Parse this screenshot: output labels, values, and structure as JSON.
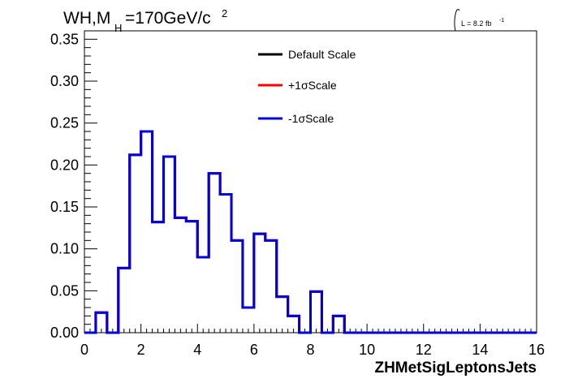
{
  "chart_data": {
    "type": "line",
    "style": "step-histogram",
    "title_text": "WH,M",
    "title_sub": "H",
    "title_rest": "=170GeV/c",
    "title_sup": "2",
    "lumi_text": "L = 8.2 fb",
    "lumi_sup": "-1",
    "xlabel": "ZHMetSigLeptonsJets",
    "ylabel": "",
    "xlim": [
      0,
      16
    ],
    "ylim": [
      0,
      0.36
    ],
    "x_ticks": [
      "0",
      "2",
      "4",
      "6",
      "8",
      "10",
      "12",
      "14",
      "16"
    ],
    "y_ticks": [
      "0.00",
      "0.05",
      "0.10",
      "0.15",
      "0.20",
      "0.25",
      "0.30",
      "0.35"
    ],
    "grid": false,
    "legend_position": "top-center",
    "bin_edges": [
      0,
      0.4,
      0.8,
      1.2,
      1.6,
      2.0,
      2.4,
      2.8,
      3.2,
      3.6,
      4.0,
      4.4,
      4.8,
      5.2,
      5.6,
      6.0,
      6.4,
      6.8,
      7.2,
      7.6,
      8.0,
      8.4,
      8.8,
      9.2,
      9.6,
      10.0,
      10.4,
      10.8,
      11.2,
      11.6,
      12.0,
      12.4,
      12.8,
      13.2,
      13.6,
      14.0,
      14.4,
      14.8,
      15.2,
      15.6,
      16.0
    ],
    "series": [
      {
        "name": "Default Scale",
        "color": "#000000",
        "values": [
          0,
          0.024,
          0,
          0.077,
          0.212,
          0.24,
          0.132,
          0.21,
          0.137,
          0.133,
          0.09,
          0.19,
          0.165,
          0.11,
          0.03,
          0.118,
          0.11,
          0.043,
          0.02,
          0,
          0.049,
          0,
          0.02,
          0,
          0,
          0,
          0,
          0,
          0,
          0,
          0,
          0,
          0,
          0,
          0,
          0,
          0,
          0,
          0,
          0
        ]
      },
      {
        "name": "+1σScale",
        "color": "#ff0000",
        "values": [
          0,
          0.024,
          0,
          0.077,
          0.212,
          0.24,
          0.132,
          0.21,
          0.137,
          0.133,
          0.09,
          0.19,
          0.165,
          0.11,
          0.03,
          0.118,
          0.11,
          0.043,
          0.02,
          0,
          0.049,
          0,
          0.02,
          0,
          0,
          0,
          0,
          0,
          0,
          0,
          0,
          0,
          0,
          0,
          0,
          0,
          0,
          0,
          0,
          0
        ]
      },
      {
        "name": "-1σScale",
        "color": "#0000dd",
        "values": [
          0,
          0.024,
          0,
          0.077,
          0.212,
          0.24,
          0.132,
          0.21,
          0.137,
          0.133,
          0.09,
          0.19,
          0.165,
          0.11,
          0.03,
          0.118,
          0.11,
          0.043,
          0.02,
          0,
          0.049,
          0,
          0.02,
          0,
          0,
          0,
          0,
          0,
          0,
          0,
          0,
          0,
          0,
          0,
          0,
          0,
          0,
          0,
          0,
          0
        ]
      }
    ]
  }
}
